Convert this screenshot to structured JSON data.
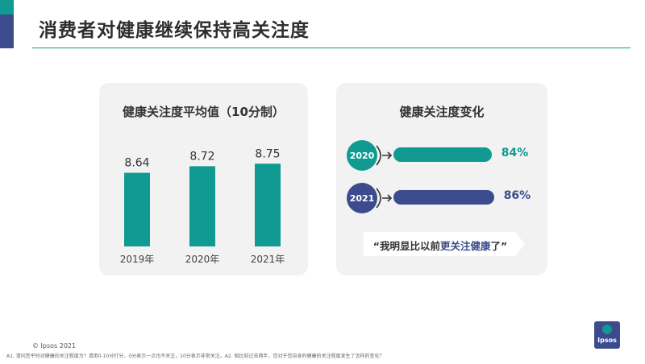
{
  "slide": {
    "title": "消费者对健康继续保持高关注度",
    "copyright": "© Ipsos 2021",
    "footnote": "A1. 请问您平时对健康的关注程度为？请用0-10分打分，0分表示一点也不关注，10分表示非常关注。A2. 相比较过去两年，您对于您自身的健康的关注程度发生了怎样的变化？",
    "logo_text": "Ipsos"
  },
  "colors": {
    "teal": "#109a91",
    "navy": "#3b4b8e",
    "card_bg": "#f2f2f2",
    "banner_bg": "#ffffff"
  },
  "chart_data": [
    {
      "type": "bar",
      "title": "健康关注度平均值（10分制）",
      "categories": [
        "2019年",
        "2020年",
        "2021年"
      ],
      "values": [
        8.64,
        8.72,
        8.75
      ],
      "value_labels": [
        "8.64",
        "8.72",
        "8.75"
      ],
      "ylim": [
        7.75,
        8.85
      ],
      "color": "#109a91"
    },
    {
      "type": "bar",
      "title": "健康关注度变化",
      "orientation": "horizontal",
      "categories": [
        "2020",
        "2021"
      ],
      "values": [
        84,
        86
      ],
      "value_labels": [
        "84%",
        "86%"
      ],
      "colors": [
        "#109a91",
        "#3b4b8e"
      ]
    }
  ],
  "quote": {
    "prefix": "“我明显比以前",
    "highlight": "更关注健康",
    "suffix": "了”"
  }
}
